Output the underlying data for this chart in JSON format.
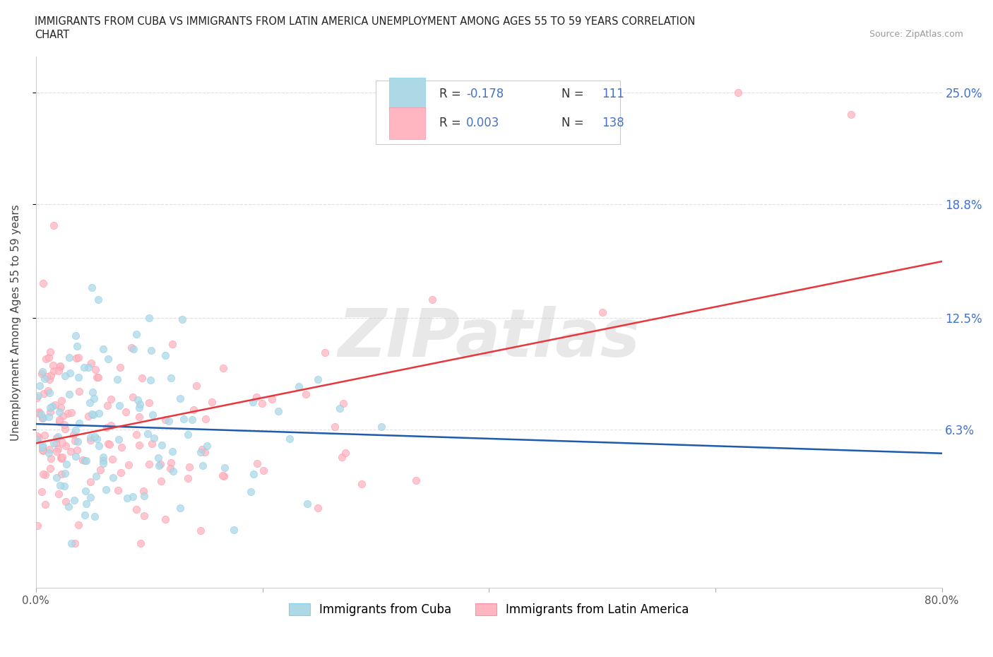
{
  "title_line1": "IMMIGRANTS FROM CUBA VS IMMIGRANTS FROM LATIN AMERICA UNEMPLOYMENT AMONG AGES 55 TO 59 YEARS CORRELATION",
  "title_line2": "CHART",
  "source": "Source: ZipAtlas.com",
  "ylabel": "Unemployment Among Ages 55 to 59 years",
  "xlim": [
    0.0,
    0.8
  ],
  "ylim": [
    -0.025,
    0.27
  ],
  "ytick_positions": [
    0.063,
    0.125,
    0.188,
    0.25
  ],
  "ytick_labels": [
    "6.3%",
    "12.5%",
    "18.8%",
    "25.0%"
  ],
  "grid_color": "#e0e0e0",
  "background_color": "#ffffff",
  "cuba_color": "#ADD8E6",
  "cuba_edge_color": "#87CEEB",
  "latam_color": "#FFB6C1",
  "latam_edge_color": "#FF91A4",
  "cuba_trend_color": "#1F5BAD",
  "latam_trend_color": "#E8373C",
  "cuba_R": -0.178,
  "cuba_N": 111,
  "latam_R": 0.003,
  "latam_N": 138,
  "legend_color": "#4472C4",
  "watermark": "ZIPatlas",
  "marker_size": 55,
  "marker_alpha": 0.75
}
